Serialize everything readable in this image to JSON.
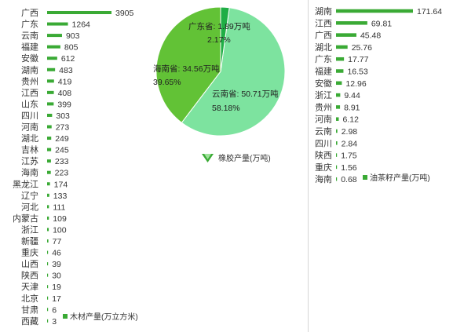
{
  "chart_data": [
    {
      "type": "bar",
      "orientation": "horizontal",
      "categories": [
        "广西",
        "广东",
        "云南",
        "福建",
        "安徽",
        "湖南",
        "贵州",
        "江西",
        "山东",
        "四川",
        "河南",
        "湖北",
        "吉林",
        "江苏",
        "海南",
        "黑龙江",
        "辽宁",
        "河北",
        "内蒙古",
        "浙江",
        "新疆",
        "重庆",
        "山西",
        "陕西",
        "天津",
        "北京",
        "甘肃",
        "西藏"
      ],
      "values": [
        3905,
        1264,
        903,
        805,
        612,
        483,
        419,
        408,
        399,
        303,
        273,
        249,
        245,
        233,
        223,
        174,
        133,
        111,
        109,
        100,
        77,
        46,
        39,
        30,
        19,
        17,
        6,
        3
      ],
      "legend": "木材产量(万立方米)",
      "legend_position": "bottom-right",
      "color": "#3aaa35",
      "grid": false
    },
    {
      "type": "pie",
      "slices": [
        {
          "name": "云南省",
          "value": 50.71,
          "unit": "万吨",
          "percent": "58.18%",
          "color": "#7de39f"
        },
        {
          "name": "海南省",
          "value": 34.56,
          "unit": "万吨",
          "percent": "39.65%",
          "color": "#62c236"
        },
        {
          "name": "广东省",
          "value": 1.89,
          "unit": "万吨",
          "percent": "2.17%",
          "color": "#1fae45"
        }
      ],
      "legend": "橡胶产量(万吨)",
      "legend_position": "bottom",
      "legend_icon": "leaf-icon"
    },
    {
      "type": "bar",
      "orientation": "horizontal",
      "categories": [
        "湖南",
        "江西",
        "广西",
        "湖北",
        "广东",
        "福建",
        "安徽",
        "浙江",
        "贵州",
        "河南",
        "云南",
        "四川",
        "陕西",
        "重庆",
        "海南"
      ],
      "values": [
        171.64,
        69.81,
        45.48,
        25.76,
        17.77,
        16.53,
        12.96,
        9.44,
        8.91,
        6.12,
        2.98,
        2.84,
        1.75,
        1.56,
        0.68
      ],
      "legend": "油茶籽产量(万吨)",
      "legend_position": "bottom-right",
      "color": "#3aaa35",
      "grid": false
    }
  ]
}
